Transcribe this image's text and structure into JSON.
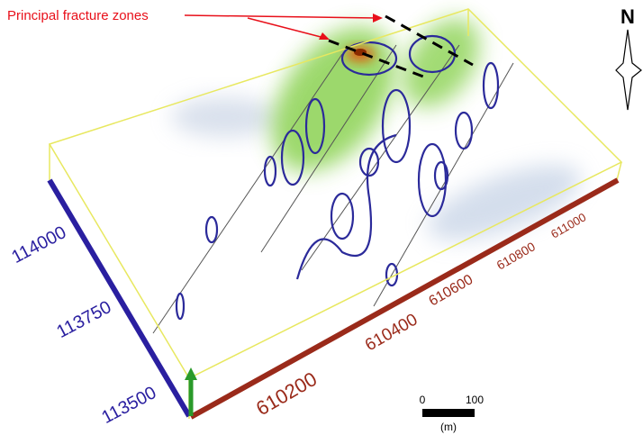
{
  "annotation": {
    "text": "Principal fracture zones"
  },
  "compass": {
    "label": "N"
  },
  "northing_axis": {
    "labels": [
      "113500",
      "113750",
      "114000"
    ]
  },
  "easting_axis": {
    "labels": [
      "610200",
      "610400",
      "610600",
      "610800",
      "611000"
    ]
  },
  "scale_bar": {
    "labels": [
      "0",
      "100"
    ],
    "unit": "(m)"
  }
}
